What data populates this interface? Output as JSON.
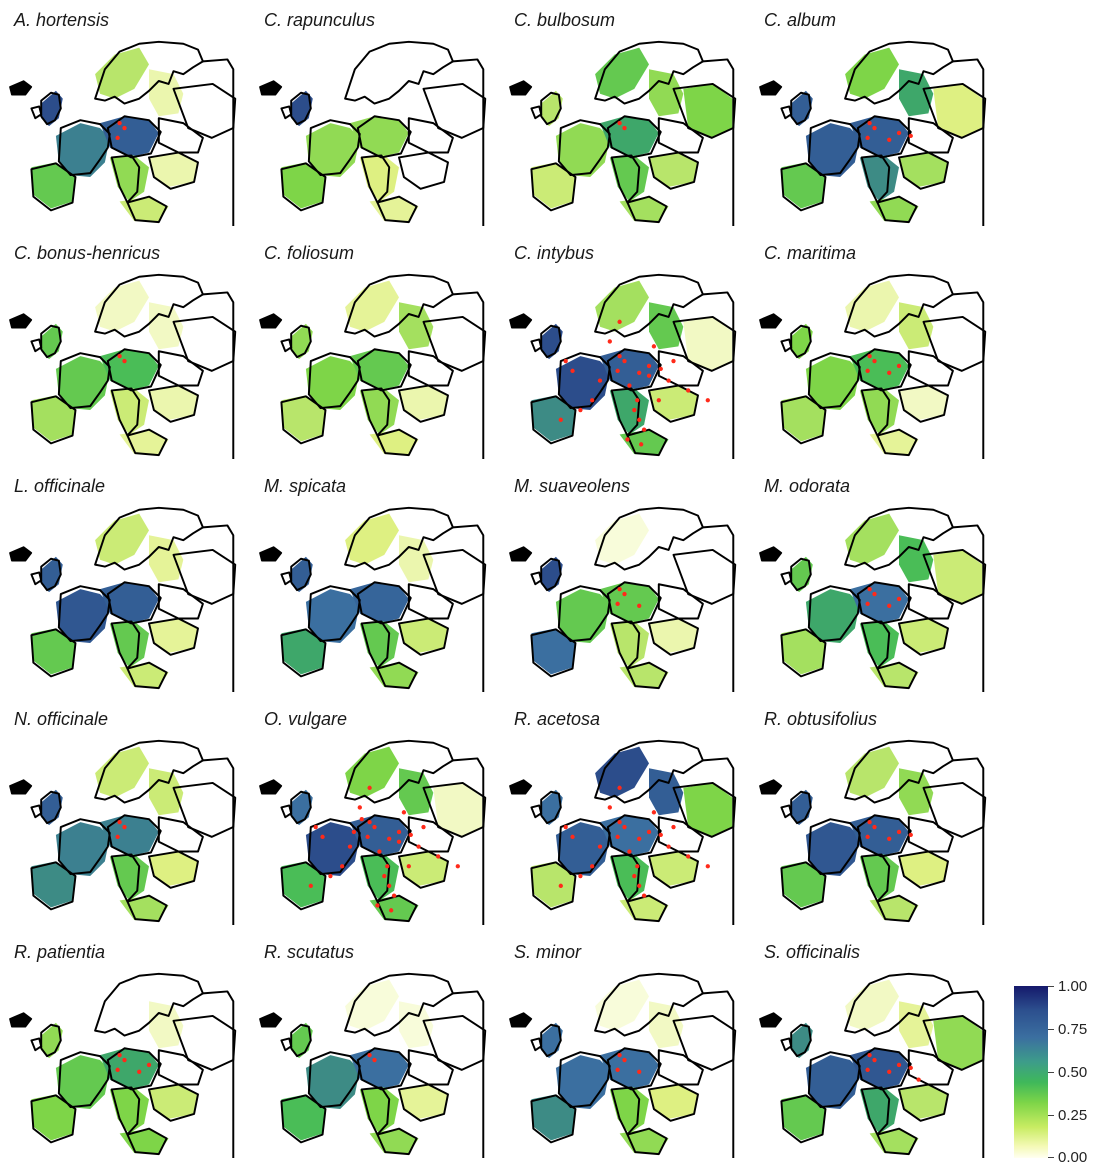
{
  "figure": {
    "panels": [
      {
        "title": "A. hortensis",
        "tone": [
          0.85,
          0.72,
          0.8,
          0.45,
          0.35,
          0.15,
          0.0,
          0.15,
          0.55,
          0.3
        ],
        "points": 3
      },
      {
        "title": "C. rapunculus",
        "tone": [
          0.85,
          0.45,
          0.45,
          0.25,
          0.0,
          0.0,
          0.0,
          0.0,
          0.5,
          0.2
        ],
        "points": 0
      },
      {
        "title": "C. bulbosum",
        "tone": [
          0.35,
          0.45,
          0.65,
          0.55,
          0.55,
          0.45,
          0.5,
          0.35,
          0.3,
          0.4
        ],
        "points": 2
      },
      {
        "title": "C. album",
        "tone": [
          0.8,
          0.8,
          0.8,
          0.7,
          0.5,
          0.65,
          0.25,
          0.4,
          0.55,
          0.45
        ],
        "points": 6
      },
      {
        "title": "C. bonus-henricus",
        "tone": [
          0.55,
          0.55,
          0.6,
          0.3,
          0.1,
          0.1,
          0.0,
          0.15,
          0.4,
          0.2
        ],
        "points": 2
      },
      {
        "title": "C. foliosum",
        "tone": [
          0.45,
          0.5,
          0.55,
          0.45,
          0.2,
          0.4,
          0.0,
          0.15,
          0.35,
          0.25
        ],
        "points": 0
      },
      {
        "title": "C. intybus",
        "tone": [
          0.85,
          0.85,
          0.8,
          0.65,
          0.4,
          0.55,
          0.1,
          0.3,
          0.7,
          0.55
        ],
        "points": 28
      },
      {
        "title": "C. maritima",
        "tone": [
          0.5,
          0.5,
          0.6,
          0.45,
          0.15,
          0.3,
          0.0,
          0.1,
          0.4,
          0.2
        ],
        "points": 5
      },
      {
        "title": "L. officinale",
        "tone": [
          0.8,
          0.82,
          0.8,
          0.55,
          0.3,
          0.2,
          0.0,
          0.2,
          0.55,
          0.3
        ],
        "points": 0
      },
      {
        "title": "M. spicata",
        "tone": [
          0.8,
          0.75,
          0.78,
          0.55,
          0.25,
          0.15,
          0.0,
          0.3,
          0.65,
          0.45
        ],
        "points": 0
      },
      {
        "title": "M. suaveolens",
        "tone": [
          0.85,
          0.55,
          0.55,
          0.35,
          0.05,
          0.0,
          0.0,
          0.15,
          0.75,
          0.35
        ],
        "points": 4
      },
      {
        "title": "M. odorata",
        "tone": [
          0.55,
          0.65,
          0.75,
          0.6,
          0.4,
          0.6,
          0.3,
          0.3,
          0.4,
          0.35
        ],
        "points": 5
      },
      {
        "title": "N. officinale",
        "tone": [
          0.8,
          0.72,
          0.72,
          0.55,
          0.3,
          0.3,
          0.0,
          0.25,
          0.7,
          0.4
        ],
        "points": 3
      },
      {
        "title": "O. vulgare",
        "tone": [
          0.75,
          0.85,
          0.8,
          0.6,
          0.5,
          0.55,
          0.1,
          0.3,
          0.6,
          0.55
        ],
        "points": 30
      },
      {
        "title": "R. acetosa",
        "tone": [
          0.75,
          0.8,
          0.75,
          0.6,
          0.85,
          0.8,
          0.5,
          0.3,
          0.35,
          0.3
        ],
        "points": 24
      },
      {
        "title": "R. obtusifolius",
        "tone": [
          0.8,
          0.82,
          0.8,
          0.55,
          0.35,
          0.45,
          0.0,
          0.25,
          0.55,
          0.35
        ],
        "points": 6
      },
      {
        "title": "R. patientia",
        "tone": [
          0.45,
          0.55,
          0.65,
          0.5,
          0.0,
          0.1,
          0.0,
          0.3,
          0.5,
          0.5
        ],
        "points": 5
      },
      {
        "title": "R. scutatus",
        "tone": [
          0.55,
          0.7,
          0.75,
          0.5,
          0.05,
          0.05,
          0.0,
          0.2,
          0.6,
          0.45
        ],
        "points": 2
      },
      {
        "title": "S. minor",
        "tone": [
          0.75,
          0.75,
          0.75,
          0.5,
          0.05,
          0.1,
          0.0,
          0.25,
          0.7,
          0.45
        ],
        "points": 4
      },
      {
        "title": "S. officinalis",
        "tone": [
          0.7,
          0.8,
          0.82,
          0.65,
          0.1,
          0.2,
          0.45,
          0.35,
          0.55,
          0.4
        ],
        "points": 7
      }
    ]
  },
  "legend": {
    "ticks": [
      "1.00",
      "0.75",
      "0.50",
      "0.25",
      "0.00"
    ],
    "min": 0.0,
    "max": 1.0,
    "gradient_low_color": "#fffff0",
    "gradient_high_color": "#15196b",
    "point_color": "#ff2a1a"
  }
}
